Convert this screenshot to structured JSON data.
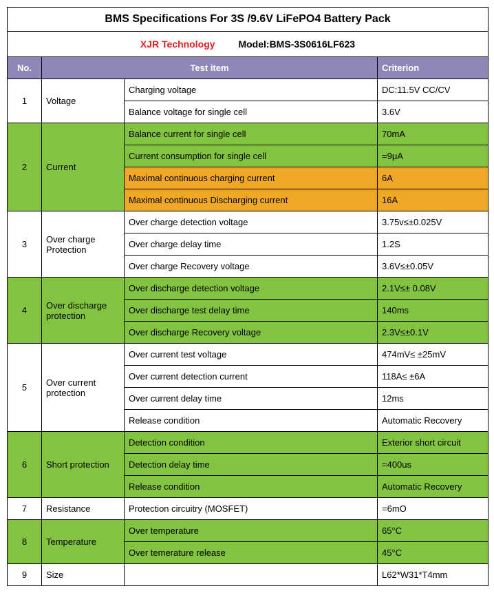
{
  "title": "BMS Specifications For 3S /9.6V LiFePO4 Battery Pack",
  "company": "XJR Technology",
  "model_label": "Model:BMS-3S0616LF623",
  "headers": {
    "no": "No.",
    "test": "Test    item",
    "criterion": "Criterion"
  },
  "groups": [
    {
      "no": "1",
      "cat": "Voltage",
      "bg": "white",
      "rows": [
        {
          "item": "Charging voltage",
          "crit": "DC:11.5V   CC/CV",
          "bg": "white"
        },
        {
          "item": "Balance voltage for single cell",
          "crit": "3.6V",
          "bg": "white"
        }
      ]
    },
    {
      "no": "2",
      "cat": "Current",
      "bg": "green",
      "rows": [
        {
          "item": "Balance current for single cell",
          "crit": "70mA",
          "bg": "green"
        },
        {
          "item": "Current consumption for single cell",
          "crit": "=9μA",
          "bg": "green"
        },
        {
          "item": "Maximal continuous charging current",
          "crit": "6A",
          "bg": "orange"
        },
        {
          "item": "Maximal continuous Discharging current",
          "crit": "16A",
          "bg": "orange"
        }
      ]
    },
    {
      "no": "3",
      "cat": "Over charge Protection",
      "bg": "white",
      "rows": [
        {
          "item": "Over charge detection voltage",
          "crit": "3.75v≤±0.025V",
          "bg": "white"
        },
        {
          "item": "Over charge delay time",
          "crit": "1.2S",
          "bg": "white"
        },
        {
          "item": "Over charge Recovery voltage",
          "crit": "3.6V≤±0.05V",
          "bg": "white"
        }
      ]
    },
    {
      "no": "4",
      "cat": "Over discharge protection",
      "bg": "green",
      "rows": [
        {
          "item": "Over discharge detection voltage",
          "crit": "2.1V≤± 0.08V",
          "bg": "green"
        },
        {
          "item": "Over discharge test delay time",
          "crit": "140ms",
          "bg": "green"
        },
        {
          "item": "Over discharge Recovery voltage",
          "crit": "2.3V≤±0.1V",
          "bg": "green"
        }
      ]
    },
    {
      "no": "5",
      "cat": "Over current protection",
      "bg": "white",
      "rows": [
        {
          "item": "Over current test voltage",
          "crit": "474mV≤ ±25mV",
          "bg": "white"
        },
        {
          "item": "Over current detection current",
          "crit": "118A≤ ±6A",
          "bg": "white"
        },
        {
          "item": "Over current delay time",
          "crit": "12ms",
          "bg": "white"
        },
        {
          "item": "Release condition",
          "crit": "Automatic Recovery",
          "bg": "white"
        }
      ]
    },
    {
      "no": "6",
      "cat": "Short protection",
      "bg": "green",
      "rows": [
        {
          "item": "Detection condition",
          "crit": "Exterior short circuit",
          "bg": "green"
        },
        {
          "item": "Detection delay time",
          "crit": "=400us",
          "bg": "green"
        },
        {
          "item": "Release condition",
          "crit": "Automatic Recovery",
          "bg": "green"
        }
      ]
    },
    {
      "no": "7",
      "cat": "Resistance",
      "bg": "white",
      "rows": [
        {
          "item": "Protection   circuitry (MOSFET)",
          "crit": "=6mO",
          "bg": "white"
        }
      ]
    },
    {
      "no": "8",
      "cat": "Temperature",
      "bg": "green",
      "rows": [
        {
          "item": "Over temperature",
          "crit": "65°C",
          "bg": "green"
        },
        {
          "item": "Over temerature release",
          "crit": "45°C",
          "bg": "green"
        }
      ]
    }
  ],
  "size_row": {
    "no": "9",
    "cat": "Size",
    "crit": "L62*W31*T4mm"
  },
  "colors": {
    "green": "#82c341",
    "orange": "#f0a726",
    "white": "#ffffff",
    "header": "#8e88b8",
    "company": "#e02020"
  }
}
